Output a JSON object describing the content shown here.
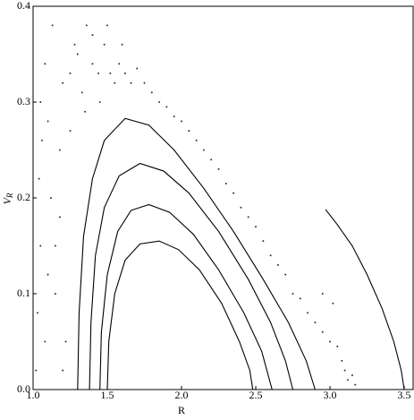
{
  "chart_data": {
    "type": "scatter",
    "xlabel": "R",
    "ylabel": "V",
    "ylabel_subscript": "R",
    "xlim": [
      1.0,
      3.56
    ],
    "ylim": [
      0,
      0.4
    ],
    "xticks": [
      {
        "value": 1,
        "label": "1.0"
      },
      1.5,
      {
        "value": 2,
        "label": "2.0"
      },
      2.5,
      {
        "value": 3,
        "label": "3.0"
      },
      3.5
    ],
    "yticks": [
      {
        "value": 0,
        "label": "0.0"
      },
      0.1,
      0.2,
      0.3,
      0.4
    ],
    "series": [
      {
        "color": "#000000",
        "line": true,
        "x": [
          1.3,
          1.31,
          1.34,
          1.4,
          1.48,
          1.62,
          1.78,
          1.95,
          2.15,
          2.35,
          2.55,
          2.72,
          2.84,
          2.9
        ],
        "values": [
          0,
          0.08,
          0.16,
          0.22,
          0.26,
          0.283,
          0.276,
          0.25,
          0.21,
          0.165,
          0.115,
          0.07,
          0.03,
          0
        ]
      },
      {
        "color": "#000000",
        "line": true,
        "x": [
          1.38,
          1.39,
          1.42,
          1.48,
          1.58,
          1.72,
          1.88,
          2.05,
          2.25,
          2.45,
          2.6,
          2.7,
          2.75
        ],
        "values": [
          0,
          0.07,
          0.14,
          0.19,
          0.223,
          0.236,
          0.228,
          0.205,
          0.165,
          0.115,
          0.07,
          0.03,
          0
        ]
      },
      {
        "color": "#000000",
        "line": true,
        "x": [
          1.45,
          1.46,
          1.5,
          1.57,
          1.66,
          1.78,
          1.92,
          2.08,
          2.25,
          2.42,
          2.54,
          2.61
        ],
        "values": [
          0,
          0.06,
          0.12,
          0.165,
          0.187,
          0.193,
          0.185,
          0.162,
          0.125,
          0.08,
          0.04,
          0
        ]
      },
      {
        "color": "#000000",
        "line": true,
        "x": [
          1.5,
          1.51,
          1.55,
          1.62,
          1.72,
          1.85,
          1.98,
          2.12,
          2.27,
          2.39,
          2.46,
          2.48
        ],
        "values": [
          0,
          0.05,
          0.1,
          0.135,
          0.152,
          0.155,
          0.146,
          0.125,
          0.09,
          0.05,
          0.02,
          0
        ]
      },
      {
        "color": "#000000",
        "line": true,
        "x": [
          2.97,
          3.05,
          3.15,
          3.25,
          3.35,
          3.43,
          3.48,
          3.5
        ],
        "values": [
          0.188,
          0.172,
          0.15,
          0.12,
          0.085,
          0.05,
          0.02,
          0
        ]
      },
      {
        "color": "#333333",
        "line": false,
        "x": [
          1.02,
          1.03,
          1.05,
          1.04,
          1.06,
          1.08,
          1.1,
          1.12,
          1.05,
          1.15,
          1.18,
          1.2,
          1.22,
          1.25,
          1.28,
          1.3,
          1.33,
          1.36,
          1.4,
          1.44,
          1.48,
          1.52,
          1.55,
          1.58,
          1.62,
          1.66,
          1.7,
          1.75,
          1.8,
          1.85,
          1.9,
          1.95,
          2.0,
          2.05,
          2.1,
          2.15,
          2.2,
          2.25,
          2.3,
          2.35,
          2.4,
          2.45,
          2.5,
          2.55,
          2.6,
          2.65,
          2.7,
          2.75,
          2.8,
          2.85,
          2.9,
          2.95,
          3.0,
          3.05,
          3.08,
          3.1,
          3.12,
          3.15,
          3.17,
          1.1,
          1.15,
          1.2,
          1.35,
          1.45,
          1.6,
          1.5,
          1.25,
          1.4,
          2.95,
          3.02,
          1.08,
          1.13,
          1.18
        ],
        "values": [
          0.02,
          0.08,
          0.15,
          0.22,
          0.26,
          0.05,
          0.12,
          0.2,
          0.3,
          0.1,
          0.25,
          0.32,
          0.05,
          0.33,
          0.36,
          0.35,
          0.31,
          0.38,
          0.37,
          0.33,
          0.36,
          0.33,
          0.32,
          0.34,
          0.33,
          0.32,
          0.335,
          0.32,
          0.31,
          0.3,
          0.295,
          0.285,
          0.28,
          0.27,
          0.26,
          0.25,
          0.24,
          0.23,
          0.215,
          0.205,
          0.19,
          0.18,
          0.17,
          0.155,
          0.14,
          0.13,
          0.12,
          0.1,
          0.095,
          0.08,
          0.07,
          0.06,
          0.05,
          0.045,
          0.03,
          0.02,
          0.01,
          0.015,
          0.005,
          0.28,
          0.15,
          0.02,
          0.29,
          0.3,
          0.36,
          0.38,
          0.27,
          0.34,
          0.1,
          0.09,
          0.34,
          0.38,
          0.18
        ]
      }
    ]
  }
}
